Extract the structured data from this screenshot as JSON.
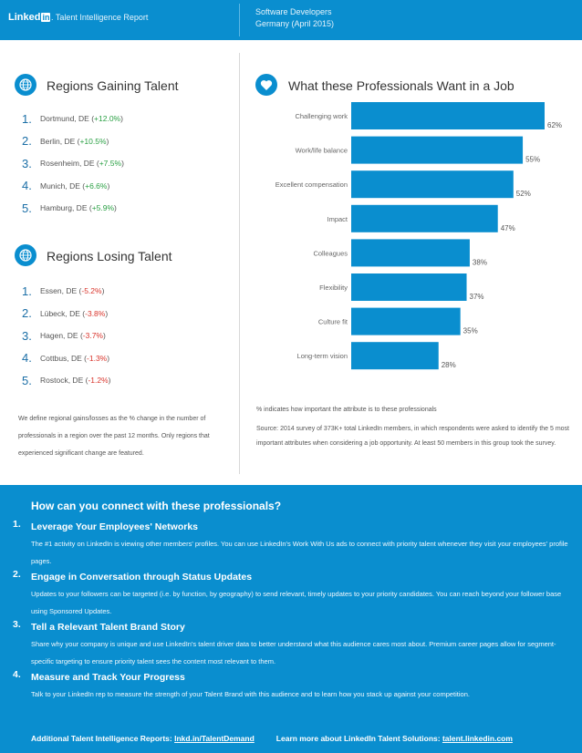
{
  "header": {
    "logo_text": "Linked",
    "logo_in": "in",
    "report_title": ". Talent Intelligence Report",
    "subtitle_line1": "Software Developers",
    "subtitle_line2": "Germany (April 2015)"
  },
  "regions_gaining": {
    "title": "Regions Gaining Talent",
    "icon": "globe-icon",
    "items": [
      {
        "num": "1.",
        "name": "Dortmund, DE (",
        "change": "+12.0%",
        "close": ")"
      },
      {
        "num": "2.",
        "name": "Berlin, DE (",
        "change": "+10.5%",
        "close": ")"
      },
      {
        "num": "3.",
        "name": "Rosenheim, DE (",
        "change": "+7.5%",
        "close": ")"
      },
      {
        "num": "4.",
        "name": "Munich, DE (",
        "change": "+6.6%",
        "close": ")"
      },
      {
        "num": "5.",
        "name": "Hamburg, DE (",
        "change": "+5.9%",
        "close": ")"
      }
    ]
  },
  "regions_losing": {
    "title": "Regions Losing Talent",
    "icon": "globe-icon",
    "items": [
      {
        "num": "1.",
        "name": "Essen, DE (",
        "change": "-5.2%",
        "close": ")"
      },
      {
        "num": "2.",
        "name": "Lübeck, DE (",
        "change": "-3.8%",
        "close": ")"
      },
      {
        "num": "3.",
        "name": "Hagen, DE (",
        "change": "-3.7%",
        "close": ")"
      },
      {
        "num": "4.",
        "name": "Cottbus, DE (",
        "change": "-1.3%",
        "close": ")"
      },
      {
        "num": "5.",
        "name": "Rostock, DE (",
        "change": "-1.2%",
        "close": ")"
      }
    ]
  },
  "left_note": "We define regional gains/losses as the % change in the number of professionals in a region over the past 12 months. Only regions that experienced significant change are featured.",
  "wants": {
    "title": "What these Professionals Want in a Job",
    "icon": "heart-icon",
    "note": "% indicates how important the attribute is to these professionals",
    "source": "Source: 2014 survey of 373K+ total LinkedIn members, in which respondents were asked to identify the 5 most important attributes when considering a job opportunity. At least 50 members in this group took the survey."
  },
  "chart_data": {
    "type": "bar",
    "orientation": "horizontal",
    "categories": [
      "Challenging work",
      "Work/life balance",
      "Excellent compensation",
      "Impact",
      "Colleagues",
      "Flexibility",
      "Culture fit",
      "Long-term vision"
    ],
    "values": [
      62,
      55,
      52,
      47,
      38,
      37,
      35,
      28
    ],
    "value_labels": [
      "62%",
      "55%",
      "52%",
      "47%",
      "38%",
      "37%",
      "35%",
      "28%"
    ],
    "unit": "%",
    "title": "",
    "xlabel": "",
    "ylabel": "",
    "xlim": [
      0,
      62
    ],
    "bar_color": "#0a8ecf",
    "grid": false
  },
  "bottom": {
    "title": "How can you connect with these professionals?",
    "tips": [
      {
        "num": "1.",
        "title": "Leverage Your Employees' Networks",
        "body": "The #1 activity on LinkedIn is viewing other members' profiles. You can use LinkedIn's Work With Us ads to connect with priority talent whenever they visit your employees' profile pages."
      },
      {
        "num": "2.",
        "title": "Engage in Conversation through Status Updates",
        "body": "Updates to your followers can be targeted (i.e. by function, by geography) to send relevant, timely updates to your priority candidates. You can reach beyond your follower base using Sponsored Updates."
      },
      {
        "num": "3.",
        "title": "Tell a Relevant Talent Brand Story",
        "body": "Share why your company is unique and use LinkedIn's talent driver data to better understand what this audience cares most about. Premium career pages allow for segment-specific targeting to ensure priority talent sees the content most relevant to them."
      },
      {
        "num": "4.",
        "title": "Measure and Track Your Progress",
        "body": "Talk to your LinkedIn rep to measure the strength of your Talent Brand with this audience and to learn how you stack up against your competition."
      }
    ],
    "footer_label1": "Additional Talent Intelligence Reports: ",
    "footer_link1": "lnkd.in/TalentDemand",
    "footer_label2": "Learn more about LinkedIn Talent Solutions: ",
    "footer_link2": "talent.linkedin.com"
  },
  "colors": {
    "brand_blue": "#0a8ecf",
    "positive": "#2aa044",
    "negative": "#d9342b"
  }
}
